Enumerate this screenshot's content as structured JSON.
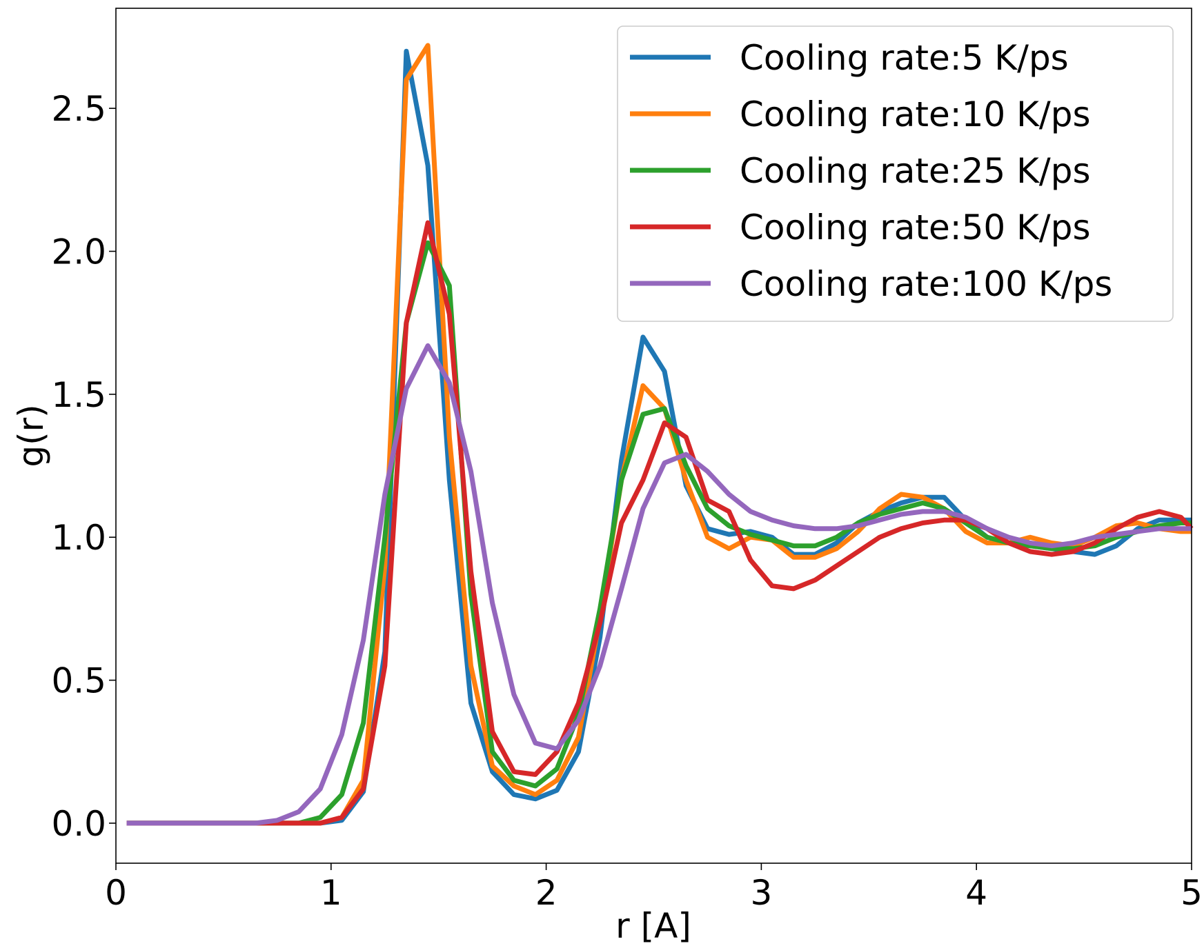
{
  "chart_data": {
    "type": "line",
    "title": "",
    "xlabel": "r [A]",
    "ylabel": "g(r)",
    "xlim": [
      0,
      5
    ],
    "ylim": [
      -0.14,
      2.85
    ],
    "xticks": [
      0,
      1,
      2,
      3,
      4,
      5
    ],
    "xtick_labels": [
      "0",
      "1",
      "2",
      "3",
      "4",
      "5"
    ],
    "yticks": [
      0.0,
      0.5,
      1.0,
      1.5,
      2.0,
      2.5
    ],
    "ytick_labels": [
      "0.0",
      "0.5",
      "1.0",
      "1.5",
      "2.0",
      "2.5"
    ],
    "grid": false,
    "legend_position": "top-right",
    "x": [
      0.05,
      0.15,
      0.25,
      0.35,
      0.45,
      0.55,
      0.65,
      0.75,
      0.85,
      0.95,
      1.05,
      1.15,
      1.25,
      1.35,
      1.45,
      1.55,
      1.65,
      1.75,
      1.85,
      1.95,
      2.05,
      2.15,
      2.25,
      2.35,
      2.45,
      2.55,
      2.65,
      2.75,
      2.85,
      2.95,
      3.05,
      3.15,
      3.25,
      3.35,
      3.45,
      3.55,
      3.65,
      3.75,
      3.85,
      3.95,
      4.05,
      4.15,
      4.25,
      4.35,
      4.45,
      4.55,
      4.65,
      4.75,
      4.85,
      4.95,
      5.0
    ],
    "series": [
      {
        "name": "Cooling rate:5 K/ps",
        "color": "#1f77b4",
        "values": [
          0,
          0,
          0,
          0,
          0,
          0,
          0,
          0,
          0,
          0,
          0.01,
          0.11,
          0.6,
          2.7,
          2.3,
          1.2,
          0.42,
          0.18,
          0.1,
          0.085,
          0.115,
          0.25,
          0.65,
          1.27,
          1.7,
          1.58,
          1.18,
          1.03,
          1.01,
          1.02,
          1.0,
          0.94,
          0.94,
          0.98,
          1.05,
          1.09,
          1.12,
          1.14,
          1.14,
          1.06,
          1.0,
          0.98,
          0.97,
          0.96,
          0.95,
          0.94,
          0.97,
          1.03,
          1.06,
          1.06,
          1.06
        ]
      },
      {
        "name": "Cooling rate:10 K/ps",
        "color": "#ff7f0e",
        "values": [
          0,
          0,
          0,
          0,
          0,
          0,
          0,
          0,
          0,
          0,
          0.02,
          0.15,
          0.9,
          2.6,
          2.72,
          1.35,
          0.55,
          0.2,
          0.13,
          0.1,
          0.15,
          0.3,
          0.72,
          1.2,
          1.53,
          1.45,
          1.2,
          1.0,
          0.96,
          1.0,
          0.99,
          0.93,
          0.93,
          0.96,
          1.02,
          1.1,
          1.15,
          1.14,
          1.1,
          1.02,
          0.98,
          0.98,
          1.0,
          0.98,
          0.97,
          1.0,
          1.04,
          1.05,
          1.03,
          1.02,
          1.02
        ]
      },
      {
        "name": "Cooling rate:25 K/ps",
        "color": "#2ca02c",
        "values": [
          0,
          0,
          0,
          0,
          0,
          0,
          0,
          0,
          0,
          0.02,
          0.1,
          0.35,
          1.0,
          1.75,
          2.03,
          1.88,
          0.8,
          0.25,
          0.15,
          0.13,
          0.19,
          0.38,
          0.75,
          1.2,
          1.43,
          1.45,
          1.25,
          1.1,
          1.04,
          1.01,
          0.99,
          0.97,
          0.97,
          1.0,
          1.05,
          1.08,
          1.1,
          1.12,
          1.1,
          1.05,
          1.0,
          0.98,
          0.97,
          0.96,
          0.96,
          0.97,
          1.0,
          1.02,
          1.04,
          1.05,
          1.05
        ]
      },
      {
        "name": "Cooling rate:50 K/ps",
        "color": "#d62728",
        "values": [
          0,
          0,
          0,
          0,
          0,
          0,
          0,
          0,
          0,
          0,
          0.02,
          0.12,
          0.55,
          1.75,
          2.1,
          1.78,
          0.88,
          0.32,
          0.18,
          0.17,
          0.25,
          0.42,
          0.7,
          1.05,
          1.2,
          1.4,
          1.35,
          1.13,
          1.09,
          0.92,
          0.83,
          0.82,
          0.85,
          0.9,
          0.95,
          1.0,
          1.03,
          1.05,
          1.06,
          1.06,
          1.03,
          0.98,
          0.95,
          0.94,
          0.95,
          0.98,
          1.03,
          1.07,
          1.09,
          1.07,
          1.03
        ]
      },
      {
        "name": "Cooling rate:100 K/ps",
        "color": "#9467bd",
        "values": [
          0,
          0,
          0,
          0,
          0,
          0,
          0,
          0.01,
          0.04,
          0.12,
          0.31,
          0.64,
          1.15,
          1.52,
          1.67,
          1.54,
          1.23,
          0.77,
          0.45,
          0.28,
          0.26,
          0.36,
          0.55,
          0.82,
          1.1,
          1.26,
          1.29,
          1.23,
          1.15,
          1.09,
          1.06,
          1.04,
          1.03,
          1.03,
          1.04,
          1.06,
          1.08,
          1.09,
          1.09,
          1.07,
          1.03,
          1.0,
          0.98,
          0.97,
          0.98,
          1.0,
          1.01,
          1.02,
          1.03,
          1.03,
          1.03
        ]
      }
    ]
  }
}
